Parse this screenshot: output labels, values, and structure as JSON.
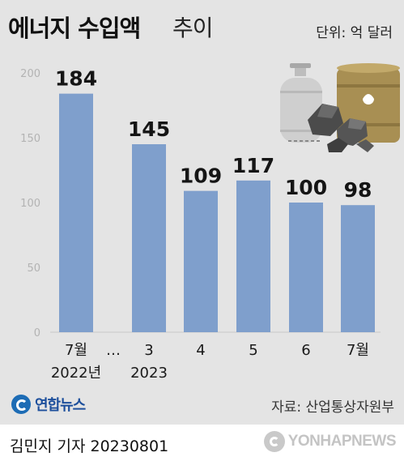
{
  "header": {
    "title_main": "에너지 수입액",
    "title_sub": "추이",
    "unit": "단위: 억 달러"
  },
  "chart_data": {
    "type": "bar",
    "title": "에너지 수입액 추이",
    "unit": "단위: 억 달러",
    "categories": [
      "7월",
      "3",
      "4",
      "5",
      "6",
      "7월"
    ],
    "year_labels": [
      "2022년",
      "2023"
    ],
    "gap_label": "…",
    "values": [
      184,
      145,
      109,
      117,
      100,
      98
    ],
    "value_labels": [
      "184",
      "145",
      "109",
      "117",
      "100",
      "98"
    ],
    "ylim": [
      0,
      200
    ],
    "yticks": [
      0,
      50,
      100,
      150,
      200
    ],
    "grid": false,
    "bar_color": "#7f9fcc"
  },
  "footer": {
    "logo_text": "연합뉴스",
    "source": "자료: 산업통상자원부",
    "reporter": "김민지 기자  20230801",
    "agency": "YONHAPNEWS"
  },
  "illustration": {
    "icons": [
      "gas-cylinder-icon",
      "oil-barrel-icon",
      "coal-icon"
    ]
  }
}
